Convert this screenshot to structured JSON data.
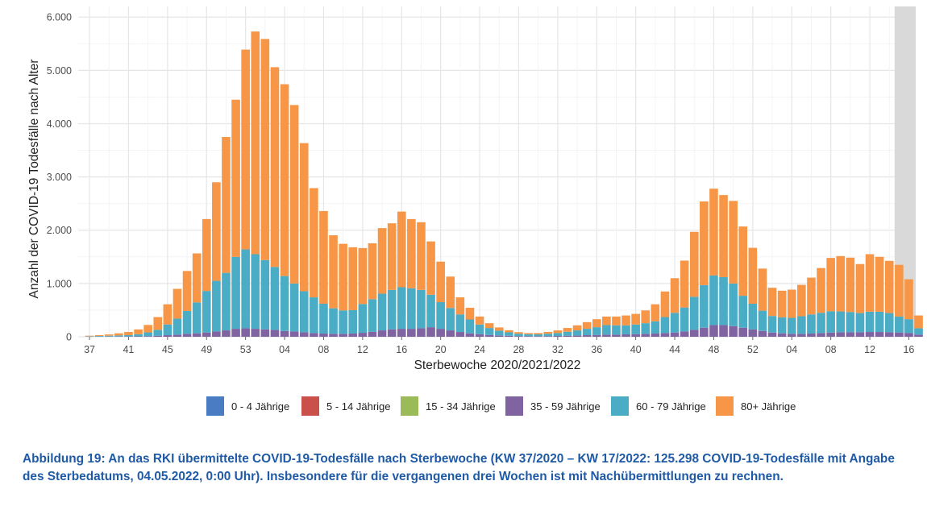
{
  "chart_data": {
    "type": "bar",
    "stacked": true,
    "xlabel": "Sterbewoche 2020/2021/2022",
    "ylabel": "Anzahl der COVID-19 Todesfälle nach Alter",
    "ylim": [
      0,
      6200
    ],
    "yticks": [
      0,
      1000,
      2000,
      3000,
      4000,
      5000,
      6000
    ],
    "ytick_labels": [
      "0",
      "1.000",
      "2.000",
      "3.000",
      "4.000",
      "5.000",
      "6.000"
    ],
    "grid": true,
    "legend_position": "bottom",
    "shaded_region": {
      "from_week": "15",
      "to_week": "17",
      "meaning": "incomplete reporting (last three weeks)"
    },
    "categories": [
      "37",
      "38",
      "39",
      "40",
      "41",
      "42",
      "43",
      "44",
      "45",
      "46",
      "47",
      "48",
      "49",
      "50",
      "51",
      "52",
      "53",
      "01",
      "02",
      "03",
      "04",
      "05",
      "06",
      "07",
      "08",
      "09",
      "10",
      "11",
      "12",
      "13",
      "14",
      "15",
      "16",
      "17",
      "18",
      "19",
      "20",
      "21",
      "22",
      "23",
      "24",
      "25",
      "26",
      "27",
      "28",
      "29",
      "30",
      "31",
      "32",
      "33",
      "34",
      "35",
      "36",
      "37",
      "38",
      "39",
      "40",
      "41",
      "42",
      "43",
      "44",
      "45",
      "46",
      "47",
      "48",
      "49",
      "50",
      "51",
      "52",
      "01",
      "02",
      "03",
      "04",
      "05",
      "06",
      "07",
      "08",
      "09",
      "10",
      "11",
      "12",
      "13",
      "14",
      "15",
      "16",
      "17"
    ],
    "tick_labels": [
      "37",
      "41",
      "45",
      "49",
      "53",
      "04",
      "08",
      "12",
      "16",
      "20",
      "24",
      "28",
      "32",
      "36",
      "40",
      "44",
      "48",
      "52",
      "04",
      "08",
      "12",
      "16"
    ],
    "series": [
      {
        "name": "0 - 4 Jährige",
        "color": "#4a7cc4",
        "values": [
          0,
          0,
          0,
          0,
          0,
          0,
          0,
          0,
          0,
          0,
          0,
          0,
          0,
          0,
          0,
          0,
          0,
          0,
          0,
          0,
          0,
          0,
          0,
          0,
          0,
          0,
          0,
          0,
          0,
          0,
          0,
          0,
          0,
          0,
          0,
          0,
          0,
          0,
          0,
          0,
          0,
          0,
          0,
          0,
          0,
          0,
          0,
          0,
          0,
          0,
          0,
          0,
          0,
          0,
          0,
          0,
          0,
          0,
          0,
          0,
          0,
          0,
          0,
          0,
          0,
          0,
          0,
          0,
          0,
          0,
          0,
          0,
          0,
          0,
          0,
          0,
          0,
          0,
          0,
          0,
          0,
          0,
          0,
          0,
          0,
          0
        ]
      },
      {
        "name": "5 - 14 Jährige",
        "color": "#c9504b",
        "values": [
          0,
          0,
          0,
          0,
          0,
          0,
          0,
          0,
          0,
          0,
          0,
          0,
          0,
          0,
          0,
          0,
          0,
          0,
          0,
          0,
          0,
          0,
          0,
          0,
          0,
          0,
          0,
          0,
          0,
          0,
          0,
          0,
          0,
          0,
          0,
          0,
          0,
          0,
          0,
          0,
          0,
          0,
          0,
          0,
          0,
          0,
          0,
          0,
          0,
          0,
          0,
          0,
          0,
          0,
          0,
          0,
          0,
          0,
          0,
          0,
          0,
          0,
          0,
          0,
          0,
          0,
          0,
          0,
          0,
          0,
          0,
          0,
          0,
          0,
          0,
          0,
          0,
          0,
          0,
          0,
          0,
          0,
          0,
          0,
          0,
          0
        ]
      },
      {
        "name": "15 - 34 Jährige",
        "color": "#9bbb59",
        "values": [
          0,
          0,
          0,
          0,
          0,
          0,
          0,
          0,
          0,
          0,
          0,
          0,
          0,
          0,
          0,
          0,
          0,
          0,
          0,
          0,
          0,
          0,
          0,
          0,
          0,
          0,
          0,
          0,
          0,
          0,
          0,
          0,
          0,
          0,
          0,
          0,
          0,
          0,
          0,
          0,
          0,
          0,
          0,
          0,
          0,
          0,
          0,
          0,
          0,
          0,
          0,
          0,
          0,
          0,
          0,
          0,
          0,
          0,
          0,
          0,
          0,
          0,
          0,
          0,
          0,
          0,
          0,
          0,
          0,
          0,
          0,
          0,
          0,
          0,
          0,
          0,
          0,
          0,
          0,
          0,
          0,
          0,
          0,
          0,
          0,
          0
        ]
      },
      {
        "name": "35 - 59 Jährige",
        "color": "#8064a2",
        "values": [
          2,
          3,
          4,
          5,
          6,
          8,
          12,
          20,
          30,
          40,
          55,
          65,
          80,
          100,
          120,
          150,
          160,
          150,
          140,
          130,
          110,
          100,
          85,
          70,
          60,
          55,
          55,
          60,
          75,
          95,
          120,
          140,
          150,
          150,
          160,
          180,
          150,
          120,
          90,
          65,
          50,
          35,
          25,
          18,
          12,
          10,
          10,
          12,
          15,
          20,
          25,
          30,
          35,
          40,
          40,
          45,
          50,
          55,
          60,
          70,
          80,
          100,
          130,
          170,
          220,
          220,
          200,
          170,
          140,
          110,
          80,
          65,
          55,
          55,
          60,
          70,
          80,
          85,
          85,
          85,
          90,
          90,
          85,
          80,
          70,
          40
        ]
      },
      {
        "name": "60 - 79 Jährige",
        "color": "#4bacc6",
        "values": [
          8,
          12,
          15,
          20,
          25,
          40,
          70,
          110,
          200,
          300,
          430,
          580,
          780,
          950,
          1080,
          1350,
          1480,
          1400,
          1300,
          1180,
          1030,
          900,
          770,
          670,
          560,
          480,
          440,
          440,
          540,
          610,
          690,
          740,
          780,
          760,
          720,
          610,
          500,
          420,
          330,
          260,
          180,
          130,
          90,
          65,
          45,
          38,
          35,
          45,
          55,
          75,
          95,
          120,
          145,
          180,
          175,
          170,
          180,
          200,
          230,
          300,
          370,
          450,
          620,
          800,
          930,
          900,
          800,
          600,
          480,
          380,
          310,
          300,
          300,
          330,
          360,
          380,
          400,
          390,
          380,
          360,
          380,
          380,
          360,
          300,
          260,
          120
        ]
      },
      {
        "name": "80+ Jährige",
        "color": "#f79646",
        "values": [
          10,
          15,
          25,
          40,
          60,
          90,
          140,
          240,
          380,
          560,
          750,
          920,
          1350,
          1850,
          2550,
          2950,
          3750,
          4180,
          4150,
          3750,
          3600,
          3350,
          2780,
          2050,
          1740,
          1370,
          1250,
          1180,
          1050,
          1050,
          1230,
          1250,
          1420,
          1300,
          1270,
          1000,
          760,
          590,
          320,
          220,
          150,
          90,
          60,
          40,
          30,
          22,
          25,
          35,
          50,
          70,
          95,
          125,
          150,
          160,
          165,
          185,
          200,
          240,
          320,
          480,
          650,
          880,
          1220,
          1570,
          1630,
          1540,
          1550,
          1300,
          1050,
          790,
          530,
          500,
          530,
          590,
          690,
          840,
          1000,
          1040,
          1020,
          920,
          1080,
          1030,
          980,
          970,
          750,
          240
        ]
      }
    ]
  },
  "legend": {
    "items": [
      {
        "label": "0 - 4 Jährige",
        "color": "#4a7cc4"
      },
      {
        "label": "5 - 14 Jährige",
        "color": "#c9504b"
      },
      {
        "label": "15 - 34 Jährige",
        "color": "#9bbb59"
      },
      {
        "label": "35 - 59 Jährige",
        "color": "#8064a2"
      },
      {
        "label": "60 - 79 Jährige",
        "color": "#4bacc6"
      },
      {
        "label": "80+ Jährige",
        "color": "#f79646"
      }
    ]
  },
  "caption": {
    "text": "Abbildung 19: An das RKI übermittelte COVID-19-Todesfälle nach Sterbewoche (KW 37/2020 – KW 17/2022: 125.298 COVID-19-Todesfälle mit Angabe des Sterbedatums, 04.05.2022, 0:00 Uhr). Insbesondere für die vergangenen drei Wochen ist mit Nachübermittlungen zu rechnen.",
    "color": "#1f5aa6"
  }
}
